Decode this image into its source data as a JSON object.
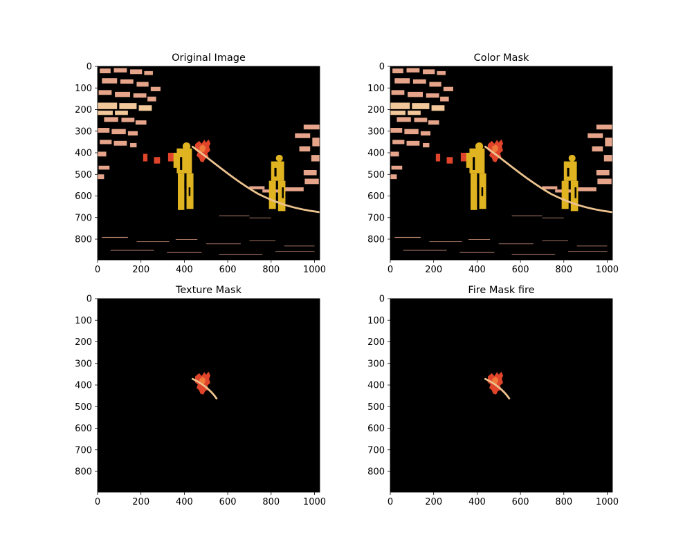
{
  "figure": {
    "colors": {
      "background": "#ffffff",
      "image_black": "#000000",
      "fire_red": "#e0452b",
      "fire_orange": "#f07a3a",
      "skin_tone": "#e6a58a",
      "highlight": "#f2c79a",
      "hose": "#e8b47c",
      "suit_yellow": "#e0b321"
    }
  },
  "chart_data": [
    {
      "type": "image",
      "title": "Original Image",
      "content": "full",
      "xlim": [
        0,
        1024
      ],
      "ylim": [
        896,
        0
      ],
      "xticks": [
        0,
        200,
        400,
        600,
        800,
        1000
      ],
      "yticks": [
        0,
        100,
        200,
        300,
        400,
        500,
        600,
        700,
        800
      ]
    },
    {
      "type": "image",
      "title": "Color Mask",
      "content": "full",
      "xlim": [
        0,
        1024
      ],
      "ylim": [
        896,
        0
      ],
      "xticks": [
        0,
        200,
        400,
        600,
        800,
        1000
      ],
      "yticks": [
        0,
        100,
        200,
        300,
        400,
        500,
        600,
        700,
        800
      ]
    },
    {
      "type": "image",
      "title": "Texture Mask",
      "content": "fire_only",
      "xlim": [
        0,
        1024
      ],
      "ylim": [
        896,
        0
      ],
      "xticks": [
        0,
        200,
        400,
        600,
        800,
        1000
      ],
      "yticks": [
        0,
        100,
        200,
        300,
        400,
        500,
        600,
        700,
        800
      ]
    },
    {
      "type": "image",
      "title": "Fire Mask fire",
      "content": "fire_only",
      "xlim": [
        0,
        1024
      ],
      "ylim": [
        896,
        0
      ],
      "xticks": [
        0,
        200,
        400,
        600,
        800,
        1000
      ],
      "yticks": [
        0,
        100,
        200,
        300,
        400,
        500,
        600,
        700,
        800
      ]
    }
  ]
}
